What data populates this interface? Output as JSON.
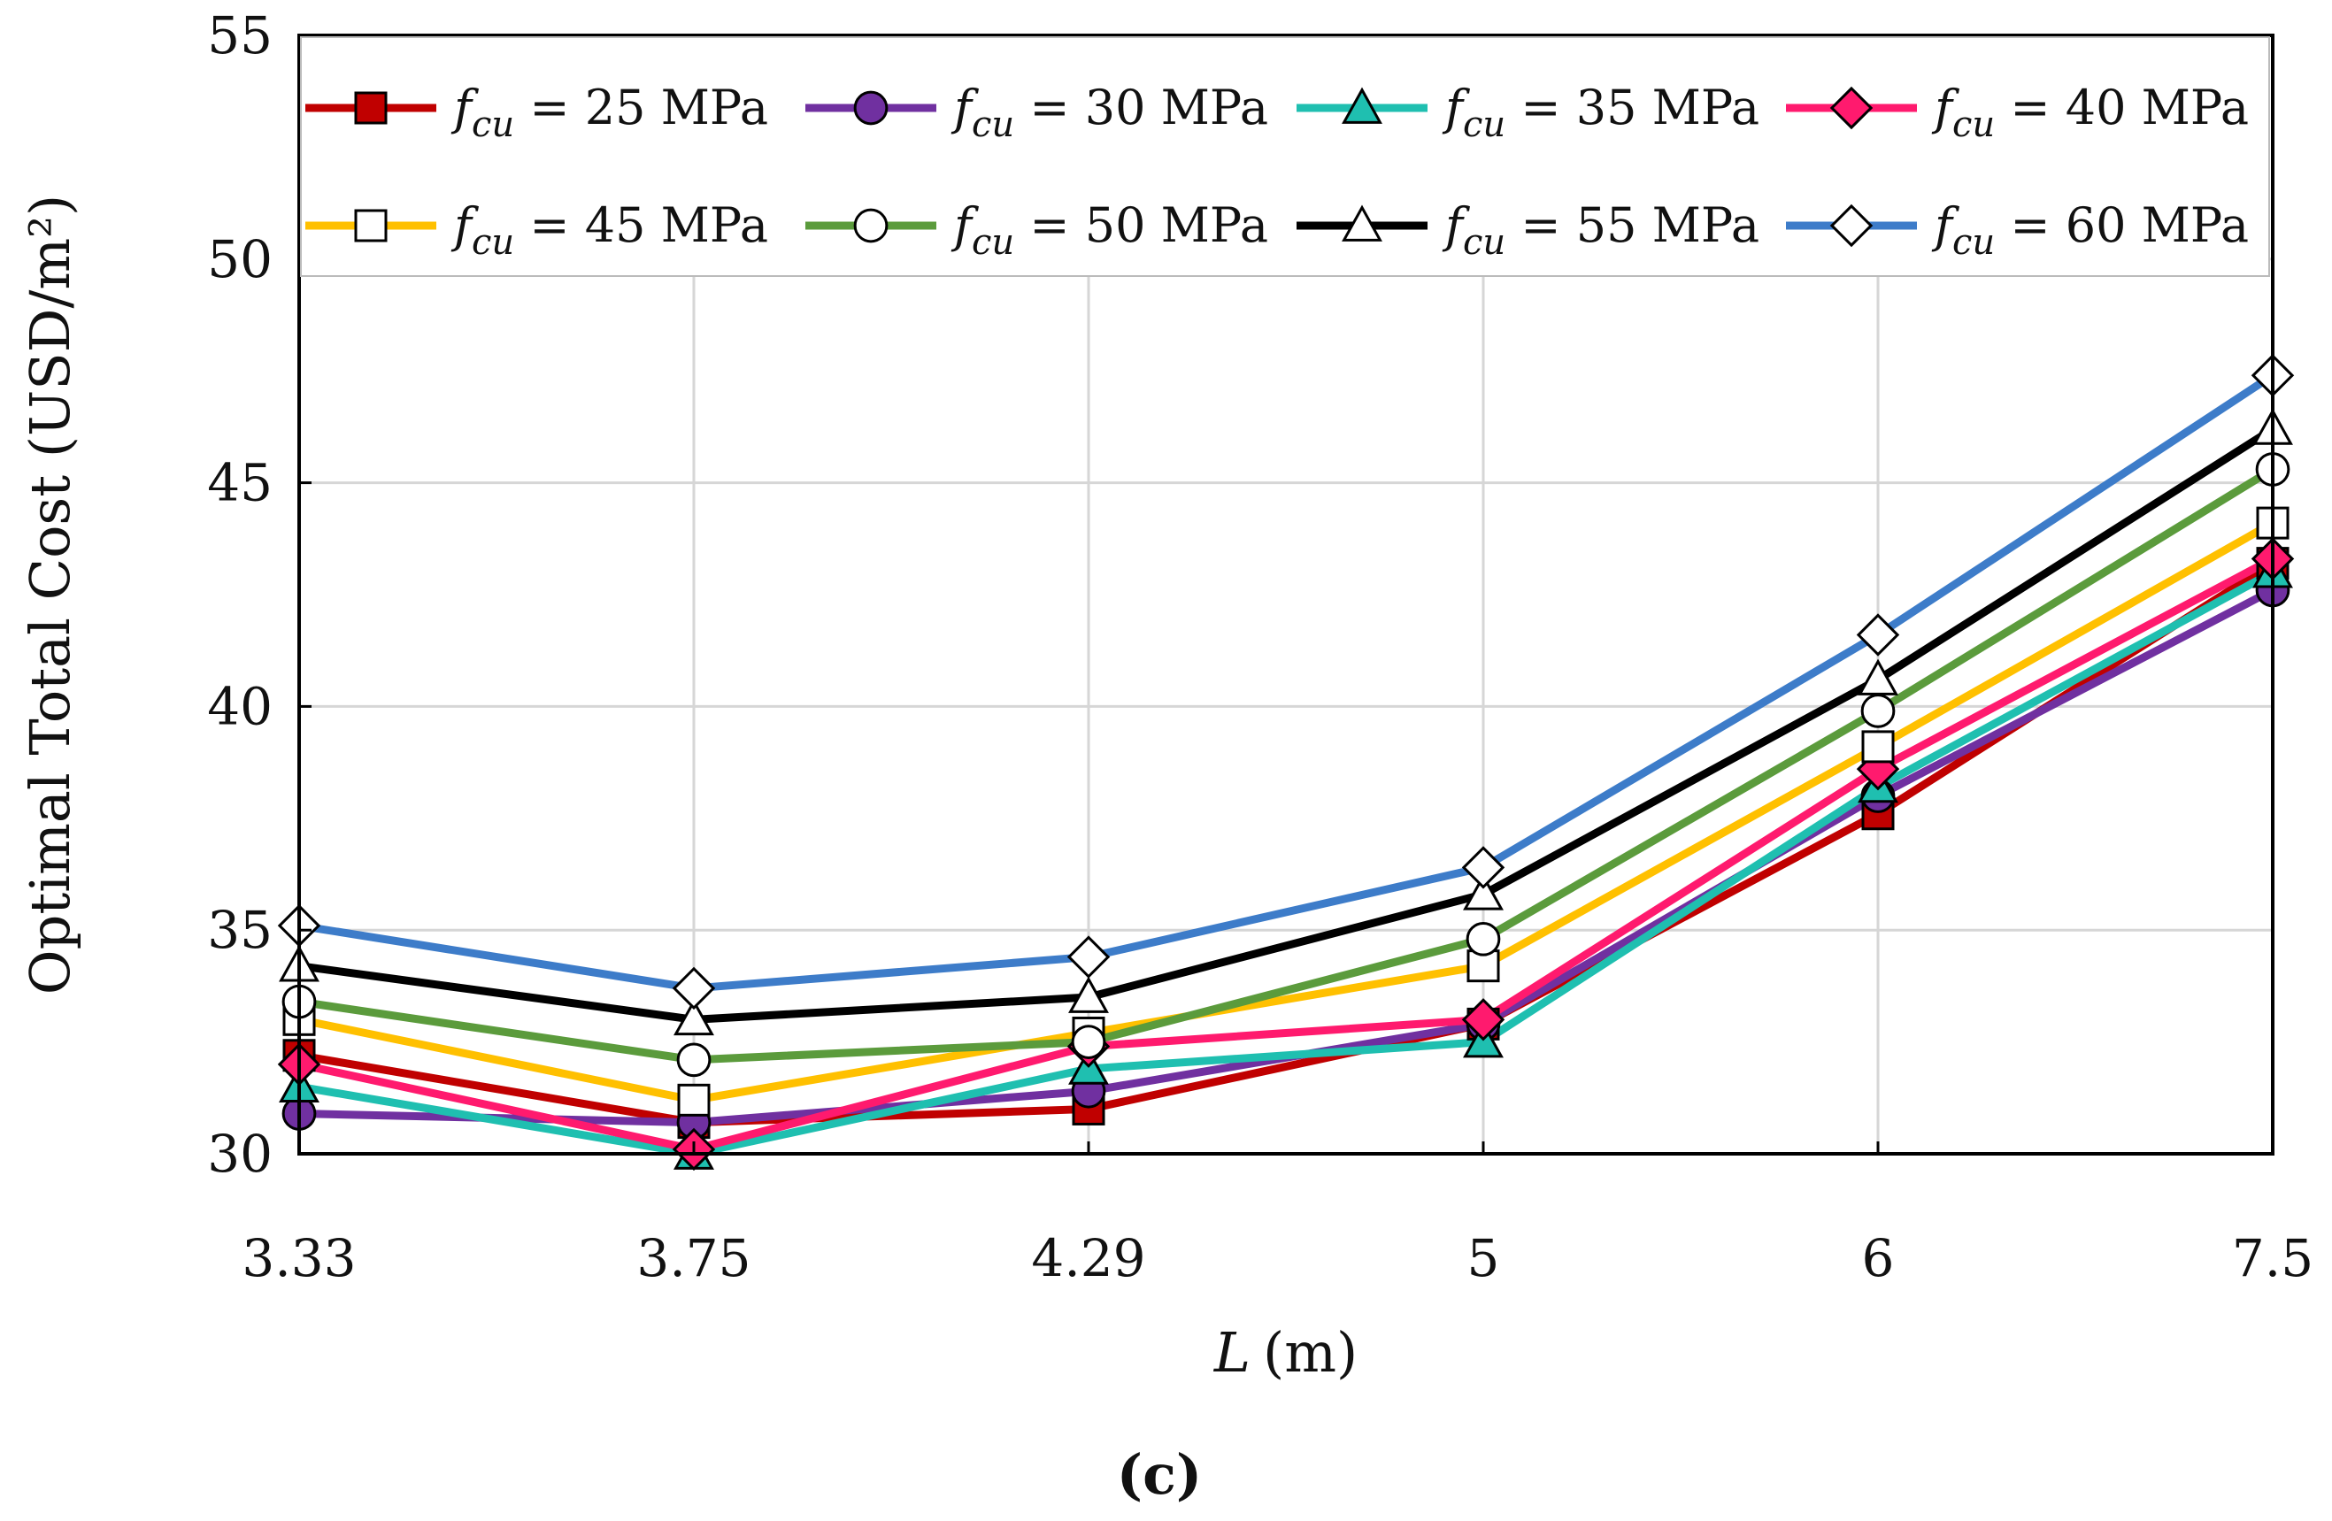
{
  "chart_data": {
    "type": "line",
    "xlabel": "L (m)",
    "xlabel_var": "L",
    "xlabel_unit": "(m)",
    "ylabel": "Optimal Total Cost (USD/m²)",
    "ylim": [
      30,
      55
    ],
    "yticks": [
      30,
      35,
      40,
      45,
      50,
      55
    ],
    "categories": [
      "3.33",
      "3.75",
      "4.29",
      "5",
      "6",
      "7.5"
    ],
    "grid": true,
    "legend_position": "top",
    "panel_label": "(c)",
    "series": [
      {
        "name": "fcu = 25 MPa",
        "name_var": "f",
        "name_sub": "cu",
        "name_rest": " = 25 MPa",
        "color": "#c00000",
        "marker": "square",
        "marker_fill": "#c00000",
        "values": [
          32.2,
          30.7,
          31.0,
          32.9,
          37.6,
          43.2
        ]
      },
      {
        "name": "fcu = 30 MPa",
        "name_var": "f",
        "name_sub": "cu",
        "name_rest": " = 30 MPa",
        "color": "#7030a0",
        "marker": "circle",
        "marker_fill": "#7030a0",
        "values": [
          30.9,
          30.7,
          31.4,
          32.9,
          38.0,
          42.6
        ]
      },
      {
        "name": "fcu = 35 MPa",
        "name_var": "f",
        "name_sub": "cu",
        "name_rest": " = 35 MPa",
        "color": "#1fbfb0",
        "marker": "triangle",
        "marker_fill": "#1fbfb0",
        "values": [
          31.5,
          30.0,
          31.9,
          32.5,
          38.2,
          43.0
        ]
      },
      {
        "name": "fcu = 40 MPa",
        "name_var": "f",
        "name_sub": "cu",
        "name_rest": " = 40 MPa",
        "color": "#ff1a6e",
        "marker": "diamond",
        "marker_fill": "#ff1a6e",
        "values": [
          32.0,
          30.1,
          32.4,
          33.0,
          38.6,
          43.3
        ]
      },
      {
        "name": "fcu = 45 MPa",
        "name_var": "f",
        "name_sub": "cu",
        "name_rest": " = 45 MPa",
        "color": "#ffc000",
        "marker": "square",
        "marker_fill": "#ffffff",
        "values": [
          33.0,
          31.2,
          32.7,
          34.2,
          39.1,
          44.1
        ]
      },
      {
        "name": "fcu = 50 MPa",
        "name_var": "f",
        "name_sub": "cu",
        "name_rest": " = 50 MPa",
        "color": "#5b9b3c",
        "marker": "circle",
        "marker_fill": "#ffffff",
        "values": [
          33.4,
          32.1,
          32.5,
          34.8,
          39.9,
          45.3
        ]
      },
      {
        "name": "fcu = 55 MPa",
        "name_var": "f",
        "name_sub": "cu",
        "name_rest": " = 55 MPa",
        "color": "#000000",
        "marker": "triangle",
        "marker_fill": "#ffffff",
        "values": [
          34.2,
          33.0,
          33.5,
          35.8,
          40.6,
          46.2
        ]
      },
      {
        "name": "fcu = 60 MPa",
        "name_var": "f",
        "name_sub": "cu",
        "name_rest": " = 60 MPa",
        "color": "#3d7cc9",
        "marker": "diamond",
        "marker_fill": "#ffffff",
        "values": [
          35.1,
          33.7,
          34.4,
          36.4,
          41.6,
          47.4
        ]
      }
    ]
  }
}
